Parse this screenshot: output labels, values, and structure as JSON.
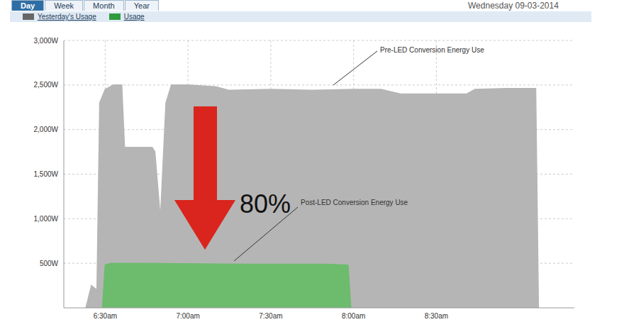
{
  "header": {
    "tabs": [
      "Day",
      "Week",
      "Month",
      "Year"
    ],
    "date": "Wednesday 09-03-2014"
  },
  "chart_data": {
    "type": "area",
    "legend": "top-left",
    "grid": true,
    "annotations": [
      "Pre-LED Conversion Energy Use",
      "Post-LED Conversion Energy Use",
      "80%"
    ],
    "xlim": [
      375,
      560
    ],
    "xticks": [
      {
        "value": 390,
        "label": "6:30am"
      },
      {
        "value": 420,
        "label": "7:00am"
      },
      {
        "value": 450,
        "label": "7:30am"
      },
      {
        "value": 480,
        "label": "8:00am"
      },
      {
        "value": 510,
        "label": "8:30am"
      }
    ],
    "ylim": [
      0,
      3000
    ],
    "yticks": [
      {
        "value": 500,
        "label": "500W"
      },
      {
        "value": 1000,
        "label": "1,000W"
      },
      {
        "value": 1500,
        "label": "1,500W"
      },
      {
        "value": 2000,
        "label": "2,000W"
      },
      {
        "value": 2500,
        "label": "2,500W"
      },
      {
        "value": 3000,
        "label": "3,000W"
      }
    ],
    "series": [
      {
        "name": "Yesterday's Usage",
        "color": "#b5b5b5",
        "x": [
          383,
          385,
          387,
          388,
          390,
          393,
          396,
          397,
          407,
          408,
          410,
          412,
          414,
          420,
          430,
          435,
          450,
          465,
          480,
          490,
          497,
          510,
          521,
          524,
          535,
          546,
          547
        ],
        "values": [
          0,
          250,
          200,
          2300,
          2450,
          2500,
          2500,
          1800,
          1800,
          1750,
          1000,
          2300,
          2500,
          2500,
          2480,
          2440,
          2450,
          2440,
          2450,
          2450,
          2400,
          2400,
          2400,
          2450,
          2460,
          2460,
          0
        ]
      },
      {
        "name": "Usage",
        "color": "#6dbb6d",
        "x": [
          389,
          390,
          392,
          400,
          440,
          470,
          478,
          479
        ],
        "values": [
          0,
          480,
          500,
          500,
          490,
          490,
          480,
          0
        ]
      }
    ]
  }
}
